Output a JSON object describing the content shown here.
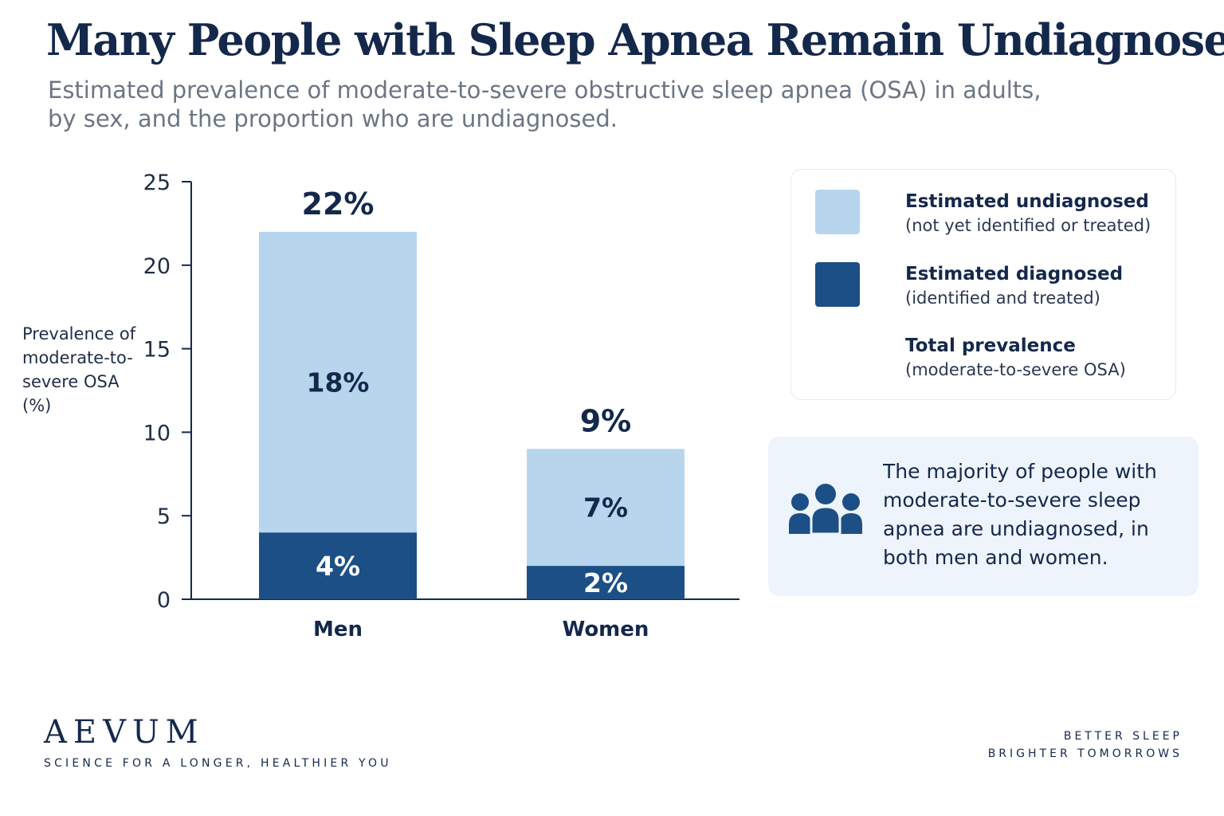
{
  "header": {
    "title": "Many People with Sleep Apnea Remain Undiagnosed",
    "subtitle_line1": "Estimated prevalence of moderate-to-severe obstructive sleep apnea (OSA) in adults,",
    "subtitle_line2": "by sex, and the proportion who are undiagnosed."
  },
  "chart_data": {
    "type": "bar",
    "stacked": true,
    "ylabel": "Prevalence of moderate-to-severe OSA (%)",
    "ylim": [
      0,
      25
    ],
    "yticks": [
      0,
      5,
      10,
      15,
      20,
      25
    ],
    "grid": false,
    "legend_position": "right",
    "categories": [
      "Men",
      "Women"
    ],
    "series": [
      {
        "name": "Estimated diagnosed",
        "values": [
          4,
          2
        ],
        "labels": [
          "4%",
          "2%"
        ],
        "color": "#1c4f85"
      },
      {
        "name": "Estimated undiagnosed",
        "values": [
          18,
          7
        ],
        "labels": [
          "18%",
          "7%"
        ],
        "color": "#b8d5ee"
      }
    ],
    "totals": [
      22,
      9
    ],
    "total_labels": [
      "22%",
      "9%"
    ]
  },
  "legend": {
    "undiagnosed_title": "Estimated undiagnosed",
    "undiagnosed_sub": "(not yet identified or treated)",
    "diagnosed_title": "Estimated diagnosed",
    "diagnosed_sub": "(identified and treated)",
    "total_title": "Total prevalence",
    "total_sub": "(moderate-to-severe OSA)"
  },
  "note": {
    "icon": "people-group-icon",
    "text": "The majority of people with moderate-to-severe sleep apnea are undiagnosed, in both men and women."
  },
  "brand": {
    "logo": "AEVUM",
    "tagline": "SCIENCE FOR A LONGER, HEALTHIER YOU"
  },
  "footer": {
    "line1": "BETTER SLEEP",
    "line2": "BRIGHTER TOMORROWS"
  },
  "colors": {
    "diagnosed": "#1c4f85",
    "undiagnosed": "#b8d5ee",
    "text": "#14284b",
    "note_background": "#eef4fb"
  }
}
